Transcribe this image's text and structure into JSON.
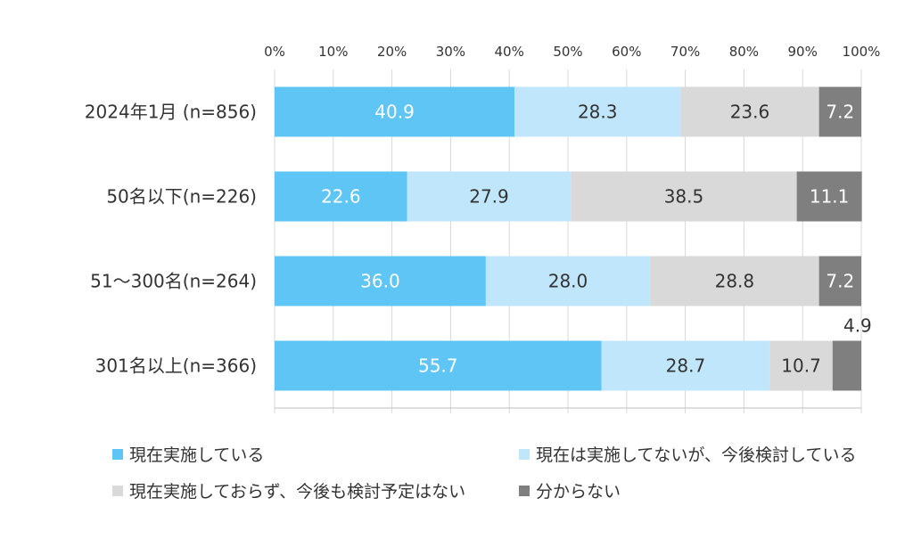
{
  "chart_data": {
    "type": "bar",
    "orientation": "horizontal",
    "stacked": true,
    "categories": [
      "2024年1月 (n=856)",
      "50名以下(n=226)",
      "51～300名(n=264)",
      "301名以上(n=366)"
    ],
    "series": [
      {
        "name": "現在実施している",
        "color": "#5ec5f5",
        "label_color": "#ffffff",
        "values": [
          40.9,
          22.6,
          36.0,
          55.7
        ],
        "labels": [
          "40.9",
          "22.6",
          "36.0",
          "55.7"
        ]
      },
      {
        "name": "現在は実施してないが、今後検討している",
        "color": "#bfe6fb",
        "label_color": "#333333",
        "values": [
          28.3,
          27.9,
          28.0,
          28.7
        ],
        "labels": [
          "28.3",
          "27.9",
          "28.0",
          "28.7"
        ]
      },
      {
        "name": "現在実施しておらず、今後も検討予定はない",
        "color": "#d9d9d9",
        "label_color": "#333333",
        "values": [
          23.6,
          38.5,
          28.8,
          10.7
        ],
        "labels": [
          "23.6",
          "38.5",
          "28.8",
          "10.7"
        ]
      },
      {
        "name": "分からない",
        "color": "#7f7f7f",
        "label_color": "#ffffff",
        "values": [
          7.2,
          11.1,
          7.2,
          4.9
        ],
        "labels": [
          "7.2",
          "11.1",
          "7.2",
          "4.9"
        ]
      }
    ],
    "xlim": [
      0,
      100
    ],
    "x_ticks": [
      "0%",
      "10%",
      "20%",
      "30%",
      "40%",
      "50%",
      "60%",
      "70%",
      "80%",
      "90%",
      "100%"
    ],
    "grid": true,
    "legend": "bottom",
    "title": "",
    "xlabel": "",
    "ylabel": ""
  }
}
